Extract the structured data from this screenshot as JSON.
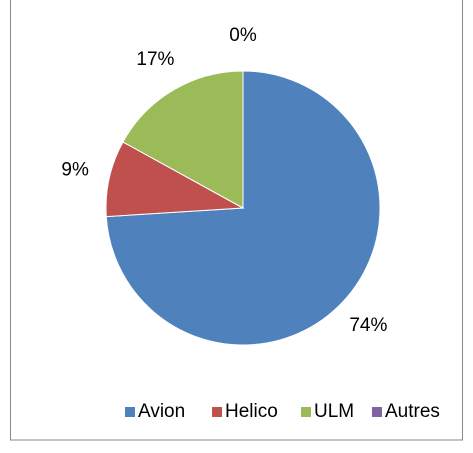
{
  "chart_data": {
    "type": "pie",
    "categories": [
      "Avion",
      "Helico",
      "ULM",
      "Autres"
    ],
    "values": [
      74,
      9,
      17,
      0
    ],
    "value_labels": [
      "74%",
      "9%",
      "17%",
      "0%"
    ],
    "colors": [
      "#4f81bd",
      "#c0504d",
      "#9bbb59",
      "#8064a2"
    ],
    "legend": "bottom"
  }
}
